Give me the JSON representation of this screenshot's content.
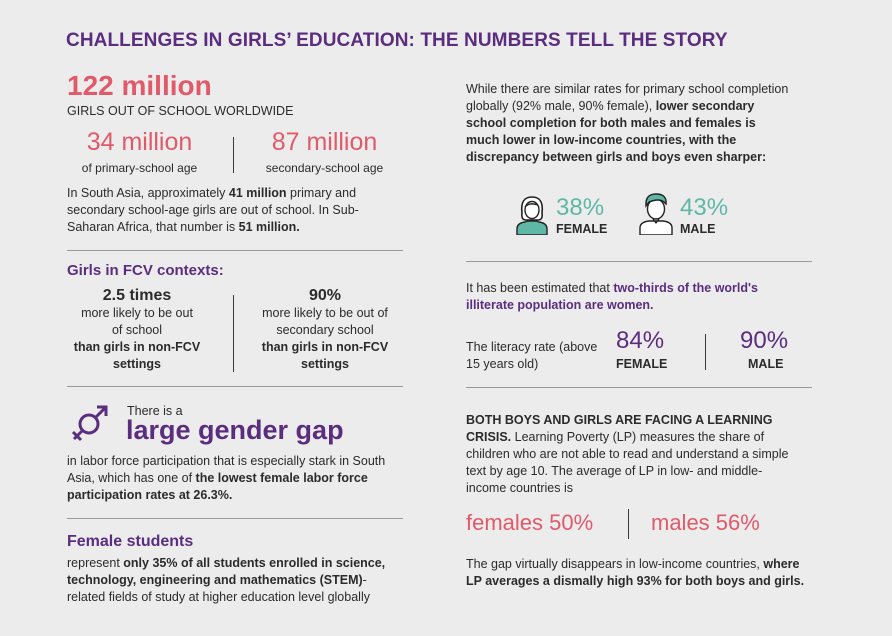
{
  "title": "CHALLENGES IN GIRLS’ EDUCATION: THE NUMBERS TELL THE STORY",
  "left": {
    "oos_number": "122 million",
    "oos_label": "GIRLS OUT OF SCHOOL WORLDWIDE",
    "primary_number": "34 million",
    "primary_label": "of primary-school age",
    "secondary_number": "87 million",
    "secondary_label": "secondary-school age",
    "regions_p1": "In South Asia, approximately ",
    "regions_b1": "41 million",
    "regions_p2": " primary and secondary school-age girls are out of school. In Sub-Saharan Africa, that number is ",
    "regions_b2": "51 million.",
    "fcv_heading": "Girls in FCV contexts:",
    "fcv1_big": "2.5 times",
    "fcv1_text": "more likely to be out of school",
    "fcv1_bold": "than girls in non-FCV settings",
    "fcv2_big": "90%",
    "fcv2_text": "more likely to be out of secondary school",
    "fcv2_bold": "than girls in non-FCV settings",
    "gap_intro": "There is a",
    "gap_big": "large gender gap",
    "gap_p1": "in labor force participation that is especially stark in South Asia, which has one of ",
    "gap_b1": "the lowest female labor force participation rates at 26.3%.",
    "stem_heading": "Female students",
    "stem_p1": "represent ",
    "stem_b1": "only 35% of all students enrolled in science, technology, engineering and mathematics (STEM)",
    "stem_p2": "-related fields of study at higher education level globally"
  },
  "right": {
    "completion_p1": "While there are similar rates for primary school completion globally (92% male, 90% female), ",
    "completion_b1": "lower secondary school completion for both males and females is much lower in low-income countries, with the discrepancy between girls and boys even sharper:",
    "female_pct": "38%",
    "female_label": "FEMALE",
    "male_pct": "43%",
    "male_label": "MALE",
    "illit_p1": "It has been estimated that ",
    "illit_b1": "two-thirds of the world's illiterate population are women.",
    "lit_label": "The literacy rate (above 15 years old)",
    "lit_female_pct": "84%",
    "lit_female_label": "FEMALE",
    "lit_male_pct": "90%",
    "lit_male_label": "MALE",
    "crisis_b1": "BOTH BOYS AND GIRLS ARE FACING A LEARNING CRISIS.",
    "crisis_p1": " Learning Poverty (LP) measures the share of children who are not able to read and understand a simple text by age 10. The average of LP in low- and middle-income countries is",
    "lp_female": "females 50%",
    "lp_male": "males 56%",
    "gap2_p1": "The gap virtually disappears in low-income countries, ",
    "gap2_b1": "where LP averages a dismally high 93% for both boys and girls."
  },
  "colors": {
    "purple": "#5b2d7e",
    "red": "#e05a6a",
    "teal": "#5fb8a6",
    "background": "#ececed"
  },
  "icons": [
    "gender-symbol-icon",
    "girl-avatar-icon",
    "boy-avatar-icon"
  ]
}
